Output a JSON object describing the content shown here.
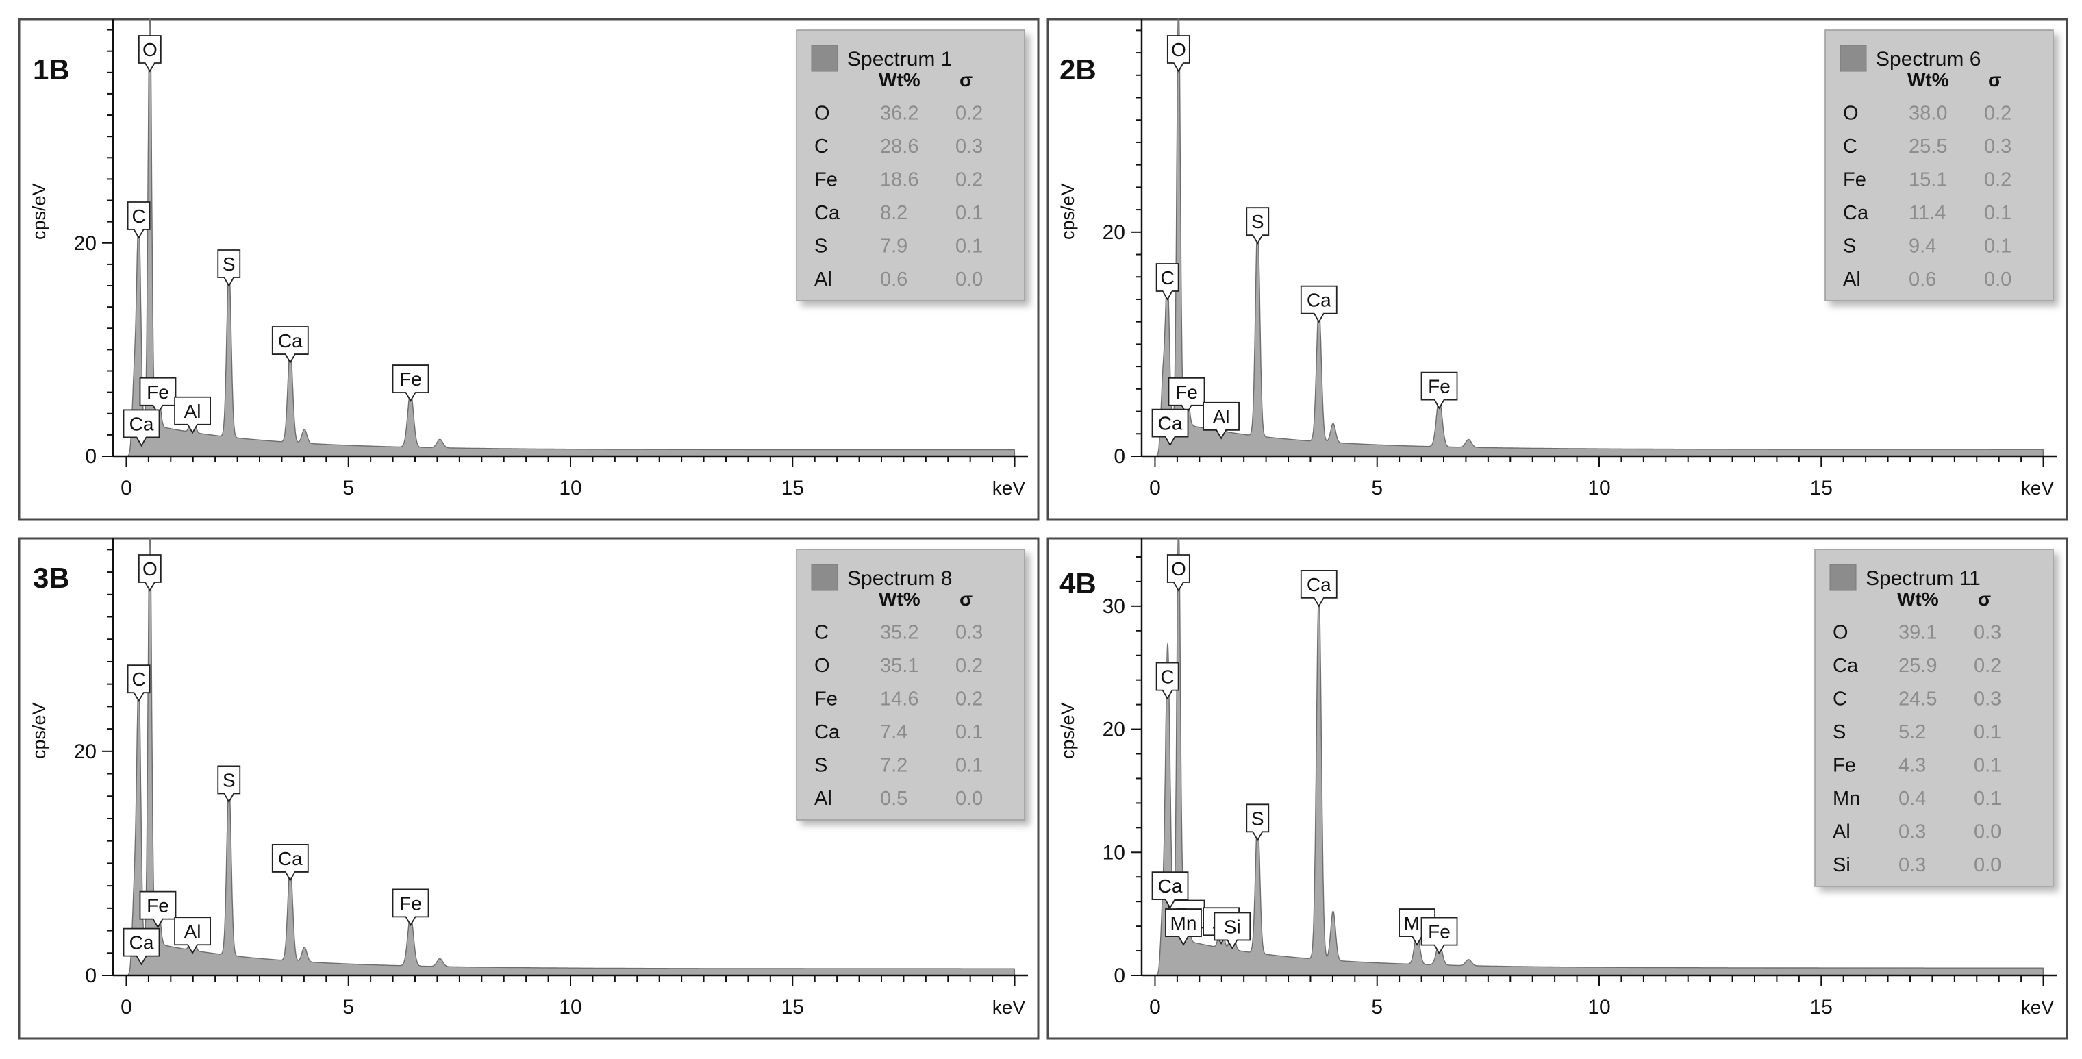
{
  "panel_labels": [
    "1B",
    "2B",
    "3B",
    "4B"
  ],
  "colors": {
    "frame": "#4a4a4a",
    "spectrum_fill": "#a8a8a8",
    "spectrum_line": "#6e6e6e",
    "legend_bg": "#c9c9c9",
    "legend_swatch": "#8c8c8c",
    "legend_value": "#8c8c8c",
    "text": "#111111"
  },
  "chart_data": [
    {
      "type": "area",
      "panel": "1B",
      "xlabel": "keV",
      "ylabel": "cps/eV",
      "xlim": [
        -0.3,
        20.3
      ],
      "ylim": [
        0,
        41
      ],
      "xticks": [
        0,
        5,
        10,
        15
      ],
      "yticks": [
        0,
        20
      ],
      "legend": {
        "series": "Spectrum 1",
        "headers": [
          "Wt%",
          "σ"
        ],
        "rows": [
          [
            "O",
            "36.2",
            "0.2"
          ],
          [
            "C",
            "28.6",
            "0.3"
          ],
          [
            "Fe",
            "18.6",
            "0.2"
          ],
          [
            "Ca",
            "8.2",
            "0.1"
          ],
          [
            "S",
            "7.9",
            "0.1"
          ],
          [
            "Al",
            "0.6",
            "0.0"
          ]
        ]
      },
      "peaks": [
        {
          "x": 0.18,
          "y": 6.5,
          "w": 0.045
        },
        {
          "x": 0.28,
          "y": 20.5,
          "w": 0.045
        },
        {
          "x": 0.53,
          "y": 40.0,
          "w": 0.04
        },
        {
          "x": 0.71,
          "y": 4.0,
          "w": 0.05
        },
        {
          "x": 1.49,
          "y": 2.2,
          "w": 0.05
        },
        {
          "x": 2.31,
          "y": 16.0,
          "w": 0.05
        },
        {
          "x": 3.69,
          "y": 8.8,
          "w": 0.055
        },
        {
          "x": 4.01,
          "y": 1.3,
          "w": 0.055
        },
        {
          "x": 6.4,
          "y": 5.2,
          "w": 0.065
        },
        {
          "x": 7.06,
          "y": 0.8,
          "w": 0.065
        }
      ],
      "annotations": [
        {
          "label": "O",
          "x": 0.53,
          "y": 40.0
        },
        {
          "label": "C",
          "x": 0.28,
          "y": 20.5
        },
        {
          "label": "S",
          "x": 2.31,
          "y": 16.0
        },
        {
          "label": "Ca",
          "x": 3.69,
          "y": 8.8
        },
        {
          "label": "Fe",
          "x": 6.4,
          "y": 5.2
        },
        {
          "label": "Fe",
          "x": 0.71,
          "y": 4.0
        },
        {
          "label": "Al",
          "x": 1.49,
          "y": 2.2
        },
        {
          "label": "Ca",
          "x": 0.34,
          "y": 1.0
        }
      ]
    },
    {
      "type": "area",
      "panel": "2B",
      "xlabel": "keV",
      "ylabel": "cps/eV",
      "xlim": [
        -0.3,
        20.3
      ],
      "ylim": [
        0,
        39
      ],
      "xticks": [
        0,
        5,
        10,
        15
      ],
      "yticks": [
        0,
        20
      ],
      "legend": {
        "series": "Spectrum 6",
        "headers": [
          "Wt%",
          "σ"
        ],
        "rows": [
          [
            "O",
            "38.0",
            "0.2"
          ],
          [
            "C",
            "25.5",
            "0.3"
          ],
          [
            "Fe",
            "15.1",
            "0.2"
          ],
          [
            "Ca",
            "11.4",
            "0.1"
          ],
          [
            "S",
            "9.4",
            "0.1"
          ],
          [
            "Al",
            "0.6",
            "0.0"
          ]
        ]
      },
      "peaks": [
        {
          "x": 0.18,
          "y": 6.0,
          "w": 0.045
        },
        {
          "x": 0.28,
          "y": 14.0,
          "w": 0.045
        },
        {
          "x": 0.53,
          "y": 38.0,
          "w": 0.04
        },
        {
          "x": 0.71,
          "y": 3.8,
          "w": 0.05
        },
        {
          "x": 1.49,
          "y": 1.6,
          "w": 0.05
        },
        {
          "x": 2.31,
          "y": 19.0,
          "w": 0.05
        },
        {
          "x": 3.69,
          "y": 12.0,
          "w": 0.055
        },
        {
          "x": 4.01,
          "y": 1.7,
          "w": 0.055
        },
        {
          "x": 6.4,
          "y": 4.3,
          "w": 0.065
        },
        {
          "x": 7.06,
          "y": 0.7,
          "w": 0.065
        }
      ],
      "annotations": [
        {
          "label": "O",
          "x": 0.53,
          "y": 38.0
        },
        {
          "label": "C",
          "x": 0.28,
          "y": 14.0
        },
        {
          "label": "S",
          "x": 2.31,
          "y": 19.0
        },
        {
          "label": "Ca",
          "x": 3.69,
          "y": 12.0
        },
        {
          "label": "Fe",
          "x": 6.4,
          "y": 4.3
        },
        {
          "label": "Fe",
          "x": 0.71,
          "y": 3.8
        },
        {
          "label": "Al",
          "x": 1.49,
          "y": 1.6
        },
        {
          "label": "Ca",
          "x": 0.34,
          "y": 1.0
        }
      ]
    },
    {
      "type": "area",
      "panel": "3B",
      "xlabel": "keV",
      "ylabel": "cps/eV",
      "xlim": [
        -0.3,
        20.3
      ],
      "ylim": [
        0,
        39
      ],
      "xticks": [
        0,
        5,
        10,
        15
      ],
      "yticks": [
        0,
        20
      ],
      "legend": {
        "series": "Spectrum 8",
        "headers": [
          "Wt%",
          "σ"
        ],
        "rows": [
          [
            "C",
            "35.2",
            "0.3"
          ],
          [
            "O",
            "35.1",
            "0.2"
          ],
          [
            "Fe",
            "14.6",
            "0.2"
          ],
          [
            "Ca",
            "7.4",
            "0.1"
          ],
          [
            "S",
            "7.2",
            "0.1"
          ],
          [
            "Al",
            "0.5",
            "0.0"
          ]
        ]
      },
      "peaks": [
        {
          "x": 0.18,
          "y": 6.5,
          "w": 0.045
        },
        {
          "x": 0.28,
          "y": 24.5,
          "w": 0.045
        },
        {
          "x": 0.53,
          "y": 38.0,
          "w": 0.04
        },
        {
          "x": 0.71,
          "y": 4.3,
          "w": 0.05
        },
        {
          "x": 1.49,
          "y": 2.0,
          "w": 0.05
        },
        {
          "x": 2.31,
          "y": 15.5,
          "w": 0.05
        },
        {
          "x": 3.69,
          "y": 8.5,
          "w": 0.055
        },
        {
          "x": 4.01,
          "y": 1.3,
          "w": 0.055
        },
        {
          "x": 6.4,
          "y": 4.5,
          "w": 0.065
        },
        {
          "x": 7.06,
          "y": 0.7,
          "w": 0.065
        }
      ],
      "annotations": [
        {
          "label": "O",
          "x": 0.53,
          "y": 38.0
        },
        {
          "label": "C",
          "x": 0.28,
          "y": 24.5
        },
        {
          "label": "S",
          "x": 2.31,
          "y": 15.5
        },
        {
          "label": "Ca",
          "x": 3.69,
          "y": 8.5
        },
        {
          "label": "Fe",
          "x": 6.4,
          "y": 4.5
        },
        {
          "label": "Fe",
          "x": 0.71,
          "y": 4.3
        },
        {
          "label": "Al",
          "x": 1.49,
          "y": 2.0
        },
        {
          "label": "Ca",
          "x": 0.34,
          "y": 1.0
        }
      ]
    },
    {
      "type": "area",
      "panel": "4B",
      "xlabel": "keV",
      "ylabel": "cps/eV",
      "xlim": [
        -0.3,
        20.3
      ],
      "ylim": [
        0,
        35.5
      ],
      "xticks": [
        0,
        5,
        10,
        15
      ],
      "yticks": [
        0,
        10,
        20,
        30
      ],
      "legend": {
        "series": "Spectrum 11",
        "headers": [
          "Wt%",
          "σ"
        ],
        "rows": [
          [
            "O",
            "39.1",
            "0.3"
          ],
          [
            "Ca",
            "25.9",
            "0.2"
          ],
          [
            "C",
            "24.5",
            "0.3"
          ],
          [
            "S",
            "5.2",
            "0.1"
          ],
          [
            "Fe",
            "4.3",
            "0.1"
          ],
          [
            "Mn",
            "0.4",
            "0.1"
          ],
          [
            "Al",
            "0.3",
            "0.0"
          ],
          [
            "Si",
            "0.3",
            "0.0"
          ]
        ]
      },
      "peaks": [
        {
          "x": 0.18,
          "y": 5.0,
          "w": 0.045
        },
        {
          "x": 0.28,
          "y": 22.5,
          "w": 0.045
        },
        {
          "x": 0.34,
          "y": 5.5,
          "w": 0.045
        },
        {
          "x": 0.53,
          "y": 34.0,
          "w": 0.04
        },
        {
          "x": 0.64,
          "y": 2.5,
          "w": 0.05
        },
        {
          "x": 0.71,
          "y": 3.2,
          "w": 0.05
        },
        {
          "x": 1.49,
          "y": 2.6,
          "w": 0.05
        },
        {
          "x": 1.74,
          "y": 2.2,
          "w": 0.05
        },
        {
          "x": 2.31,
          "y": 11.0,
          "w": 0.05
        },
        {
          "x": 3.69,
          "y": 30.0,
          "w": 0.055
        },
        {
          "x": 4.01,
          "y": 4.0,
          "w": 0.055
        },
        {
          "x": 5.9,
          "y": 2.5,
          "w": 0.06
        },
        {
          "x": 6.4,
          "y": 1.8,
          "w": 0.065
        },
        {
          "x": 7.06,
          "y": 0.5,
          "w": 0.065
        }
      ],
      "annotations": [
        {
          "label": "O",
          "x": 0.53,
          "y": 34.0
        },
        {
          "label": "C",
          "x": 0.28,
          "y": 22.5
        },
        {
          "label": "Ca",
          "x": 3.69,
          "y": 30.0
        },
        {
          "label": "S",
          "x": 2.31,
          "y": 11.0
        },
        {
          "label": "Mn",
          "x": 5.9,
          "y": 2.5
        },
        {
          "label": "Fe",
          "x": 6.4,
          "y": 1.8
        },
        {
          "label": "Fe",
          "x": 0.71,
          "y": 3.2
        },
        {
          "label": "Al",
          "x": 1.49,
          "y": 2.6
        },
        {
          "label": "Si",
          "x": 1.74,
          "y": 2.2
        },
        {
          "label": "Ca",
          "x": 0.34,
          "y": 5.5
        },
        {
          "label": "Mn",
          "x": 0.64,
          "y": 2.5
        }
      ]
    }
  ]
}
